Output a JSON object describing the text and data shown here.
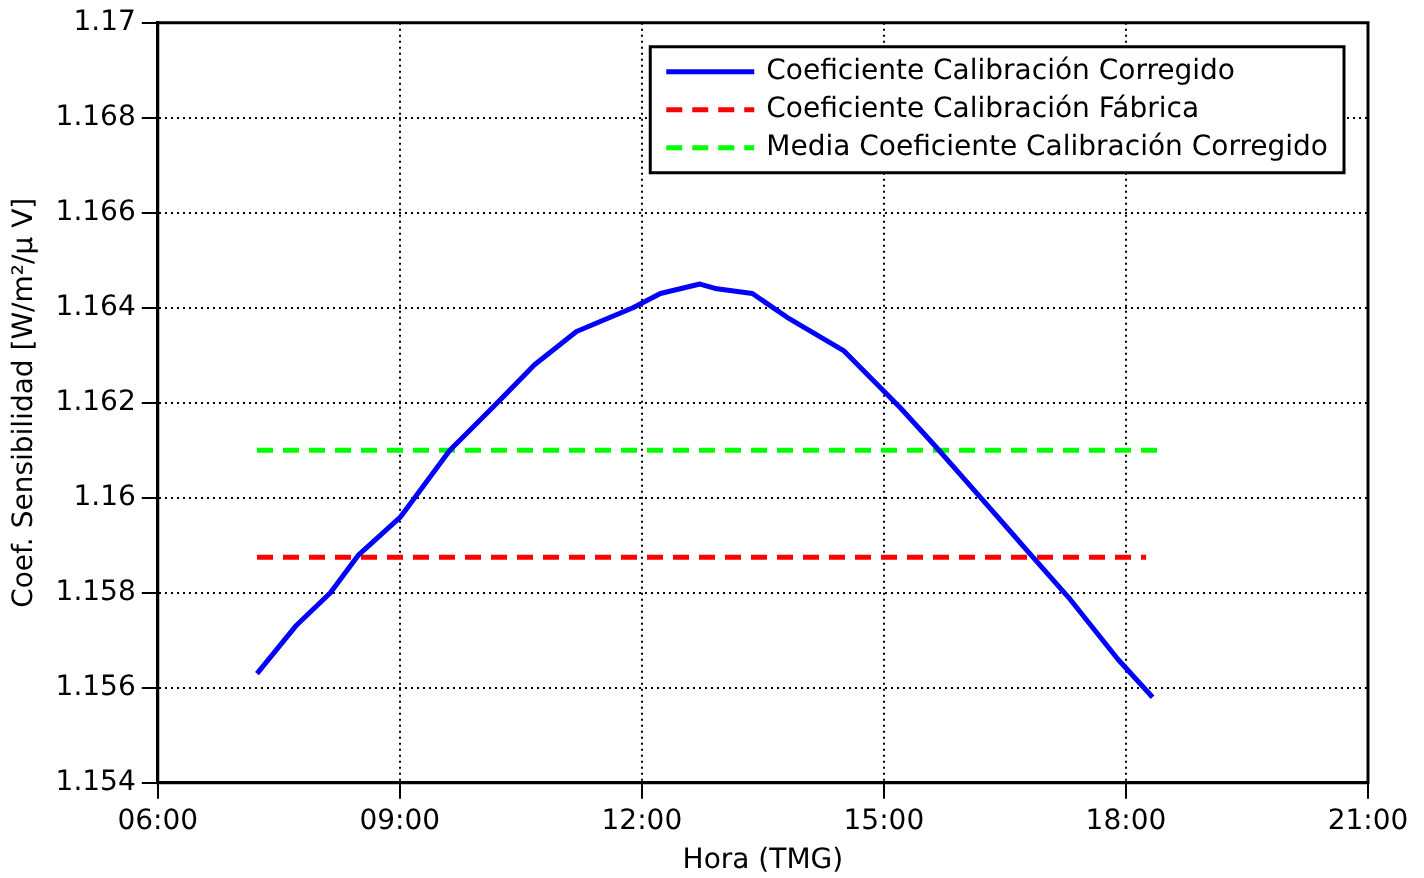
{
  "chart_data": {
    "type": "line",
    "xlabel": "Hora (TMG)",
    "ylabel": "Coef. Sensibilidad [W/m²/μ V]",
    "xlim": [
      6,
      21
    ],
    "xticks": [
      {
        "value": 6,
        "label": "06:00"
      },
      {
        "value": 9,
        "label": "09:00"
      },
      {
        "value": 12,
        "label": "12:00"
      },
      {
        "value": 15,
        "label": "15:00"
      },
      {
        "value": 18,
        "label": "18:00"
      },
      {
        "value": 21,
        "label": "21:00"
      }
    ],
    "ylim": [
      1.154,
      1.17
    ],
    "yticks": [
      1.154,
      1.156,
      1.158,
      1.16,
      1.162,
      1.164,
      1.166,
      1.168,
      1.17
    ],
    "grid": true,
    "legend": "top right",
    "marker": "none",
    "series": [
      {
        "name": "Coeficiente Calibración Corregido",
        "color": "#0000ff",
        "line_style": "solid",
        "x": [
          7.23,
          7.71,
          8.14,
          8.49,
          9.01,
          9.62,
          10.15,
          10.67,
          11.19,
          11.89,
          12.23,
          12.72,
          12.93,
          13.37,
          13.8,
          14.5,
          15.2,
          15.63,
          16.15,
          16.77,
          17.29,
          17.9,
          18.33
        ],
        "values": [
          1.1563,
          1.1573,
          1.158,
          1.1588,
          1.1596,
          1.161,
          1.1619,
          1.1628,
          1.1635,
          1.164,
          1.1643,
          1.1645,
          1.1644,
          1.1643,
          1.1638,
          1.1631,
          1.1619,
          1.1611,
          1.1601,
          1.1589,
          1.1579,
          1.1566,
          1.1558
        ]
      },
      {
        "name": "Coeficiente Calibración Fábrica",
        "color": "#ff0000",
        "line_style": "dashed",
        "x": [
          7.23,
          18.25
        ],
        "values": [
          1.15875,
          1.15875
        ]
      },
      {
        "name": "Media Coeficiente Calibración Corregido",
        "color": "#00ff00",
        "line_style": "dashed",
        "x": [
          7.23,
          18.39
        ],
        "values": [
          1.161,
          1.161
        ]
      }
    ]
  }
}
